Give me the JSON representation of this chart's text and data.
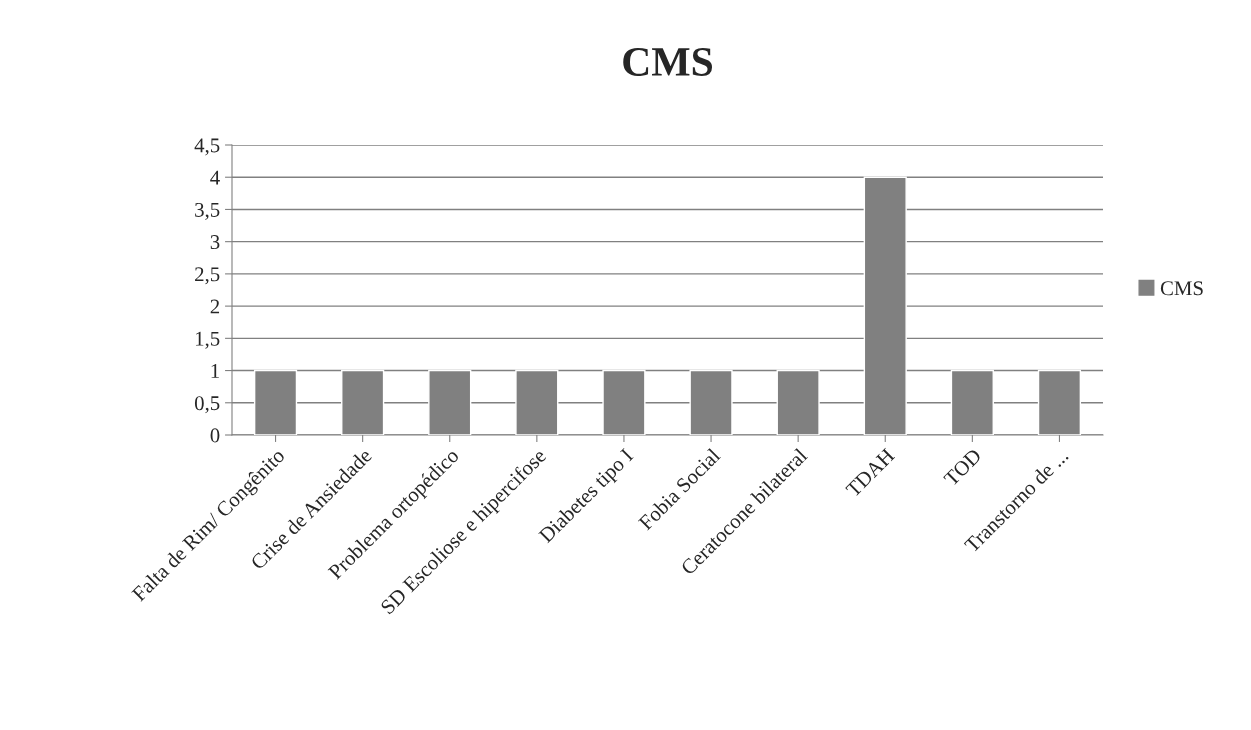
{
  "chart_data": {
    "type": "bar",
    "title": "CMS",
    "categories": [
      "Falta de Rim/ Congênito",
      "Crise de Ansiedade",
      "Problema ortopédico",
      "SD Escoliose e hipercifose",
      "Diabetes tipo I",
      "Fobia Social",
      "Ceratocone bilateral",
      "TDAH",
      "TOD",
      "Transtorno de ..."
    ],
    "series": [
      {
        "name": "CMS",
        "color": "#808080",
        "values": [
          1,
          1,
          1,
          1,
          1,
          1,
          1,
          4,
          1,
          1
        ]
      }
    ],
    "ylim": [
      0,
      4.5
    ],
    "yticks": [
      0,
      {
        "value": 0.5,
        "label": "0,5"
      },
      1,
      {
        "value": 1.5,
        "label": "1,5"
      },
      2,
      {
        "value": 2.5,
        "label": "2,5"
      },
      3,
      {
        "value": 3.5,
        "label": "3,5"
      },
      4,
      {
        "value": 4.5,
        "label": "4,5"
      }
    ],
    "grid": "y",
    "legend": "right"
  }
}
